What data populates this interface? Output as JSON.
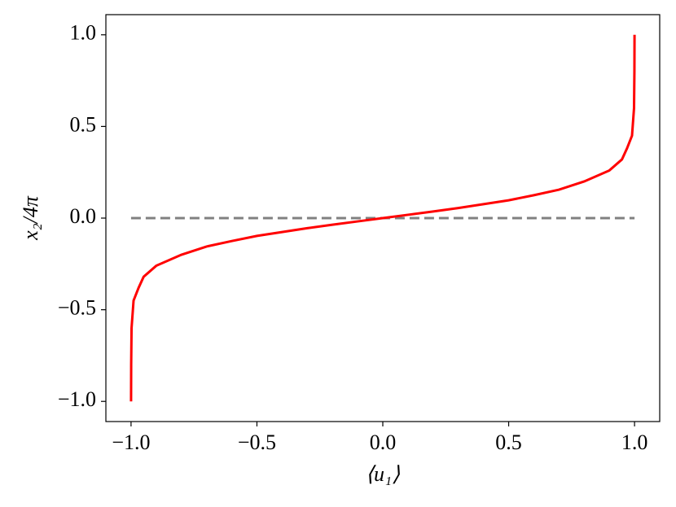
{
  "chart_data": {
    "type": "line",
    "x_label": "⟨u₁⟩",
    "y_label": "x₂/4π",
    "xlim": [
      -1.1,
      1.1
    ],
    "ylim": [
      -1.11,
      1.11
    ],
    "xticks": [
      {
        "value": -1.0,
        "label": "−1.0"
      },
      {
        "value": -0.5,
        "label": "−0.5"
      },
      {
        "value": 0.0,
        "label": "0.0"
      },
      {
        "value": 0.5,
        "label": "0.5"
      },
      {
        "value": 1.0,
        "label": "1.0"
      }
    ],
    "yticks": [
      {
        "value": -1.0,
        "label": "−1.0"
      },
      {
        "value": -0.5,
        "label": "−0.5"
      },
      {
        "value": 0.0,
        "label": "0.0"
      },
      {
        "value": 0.5,
        "label": "0.5"
      },
      {
        "value": 1.0,
        "label": "1.0"
      }
    ],
    "series": [
      {
        "color": "#808080",
        "dashed": true,
        "x": [
          -1.0,
          1.0
        ],
        "values": [
          0,
          0
        ]
      },
      {
        "color": "#ff0000",
        "dashed": false,
        "x": [
          -1.0,
          -0.9995,
          -0.998,
          -0.99,
          -0.97,
          -0.95,
          -0.9,
          -0.8,
          -0.7,
          -0.6,
          -0.5,
          -0.4,
          -0.3,
          -0.2,
          -0.1,
          0,
          0.1,
          0.2,
          0.3,
          0.4,
          0.5,
          0.6,
          0.7,
          0.8,
          0.9,
          0.95,
          0.97,
          0.99,
          0.998,
          0.9995,
          1.0
        ],
        "values": [
          -1.0,
          -0.8,
          -0.6,
          -0.45,
          -0.38,
          -0.32,
          -0.26,
          -0.2,
          -0.155,
          -0.125,
          -0.097,
          -0.076,
          -0.055,
          -0.036,
          -0.018,
          0,
          0.018,
          0.036,
          0.055,
          0.076,
          0.097,
          0.125,
          0.155,
          0.2,
          0.26,
          0.32,
          0.38,
          0.45,
          0.6,
          0.8,
          1.0
        ]
      }
    ]
  }
}
